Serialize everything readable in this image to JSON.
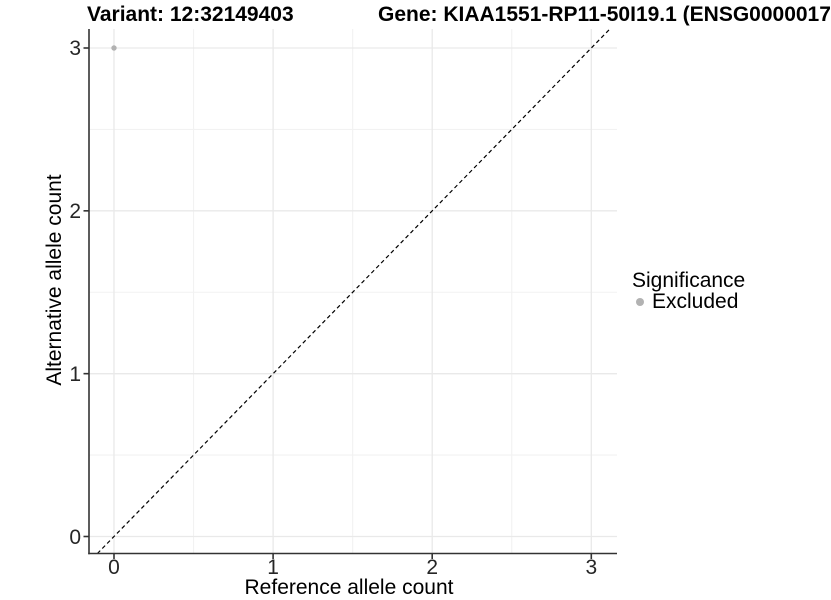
{
  "header": {
    "variant_title": "Variant: 12:32149403",
    "gene_title": "Gene: KIAA1551-RP11-50I19.1 (ENSG0000017"
  },
  "chart_data": {
    "type": "scatter",
    "title": "Variant: 12:32149403   Gene: KIAA1551-RP11-50I19.1 (ENSG0000017",
    "xlabel": "Reference allele count",
    "ylabel": "Alternative allele count",
    "x_ticks": [
      0,
      1,
      2,
      3
    ],
    "y_ticks": [
      0,
      1,
      2,
      3
    ],
    "xlim": [
      -0.16,
      3.16
    ],
    "ylim": [
      -0.1,
      3.12
    ],
    "grid": {
      "major": true,
      "minor": true
    },
    "series": [
      {
        "name": "Excluded",
        "color": "#b2b2b2",
        "points": [
          {
            "x": 0,
            "y": 3
          }
        ]
      }
    ],
    "reference_line": {
      "kind": "identity y=x",
      "style": "dashed",
      "color": "#000000"
    },
    "legend": {
      "title": "Significance",
      "position": "right",
      "items": [
        {
          "label": "Excluded",
          "color": "#b2b2b2"
        }
      ]
    }
  },
  "colors": {
    "background": "#ffffff",
    "grid_major": "#e9e9e9",
    "grid_minor": "#f2f2f2",
    "axis_line": "#333333",
    "tick_text": "#262626",
    "point": "#b2b2b2"
  }
}
